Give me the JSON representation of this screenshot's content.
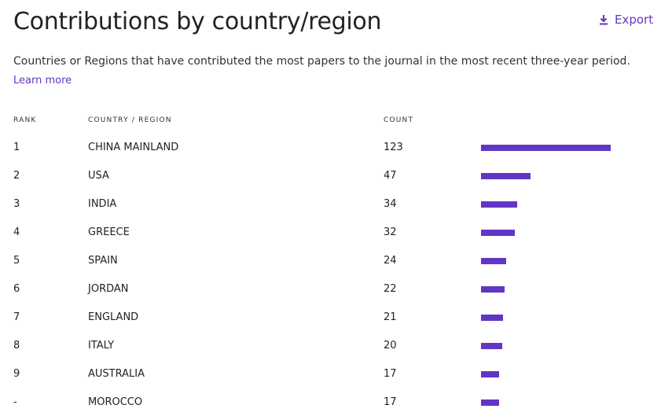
{
  "header": {
    "title": "Contributions by country/region",
    "export": "Export"
  },
  "description": {
    "text": "Countries or Regions that have contributed the most papers to the journal in the most recent three-year period.",
    "link": "Learn more"
  },
  "table": {
    "columns": [
      "RANK",
      "COUNTRY / REGION",
      "COUNT"
    ],
    "rows": [
      [
        "1",
        "CHINA MAINLAND",
        123
      ],
      [
        "2",
        "USA",
        47
      ],
      [
        "3",
        "INDIA",
        34
      ],
      [
        "4",
        "GREECE",
        32
      ],
      [
        "5",
        "SPAIN",
        24
      ],
      [
        "6",
        "JORDAN",
        22
      ],
      [
        "7",
        "ENGLAND",
        21
      ],
      [
        "8",
        "ITALY",
        20
      ],
      [
        "9",
        "AUSTRALIA",
        17
      ],
      [
        "-",
        "MOROCCO",
        17
      ]
    ],
    "bar_color": "#6236c5"
  }
}
